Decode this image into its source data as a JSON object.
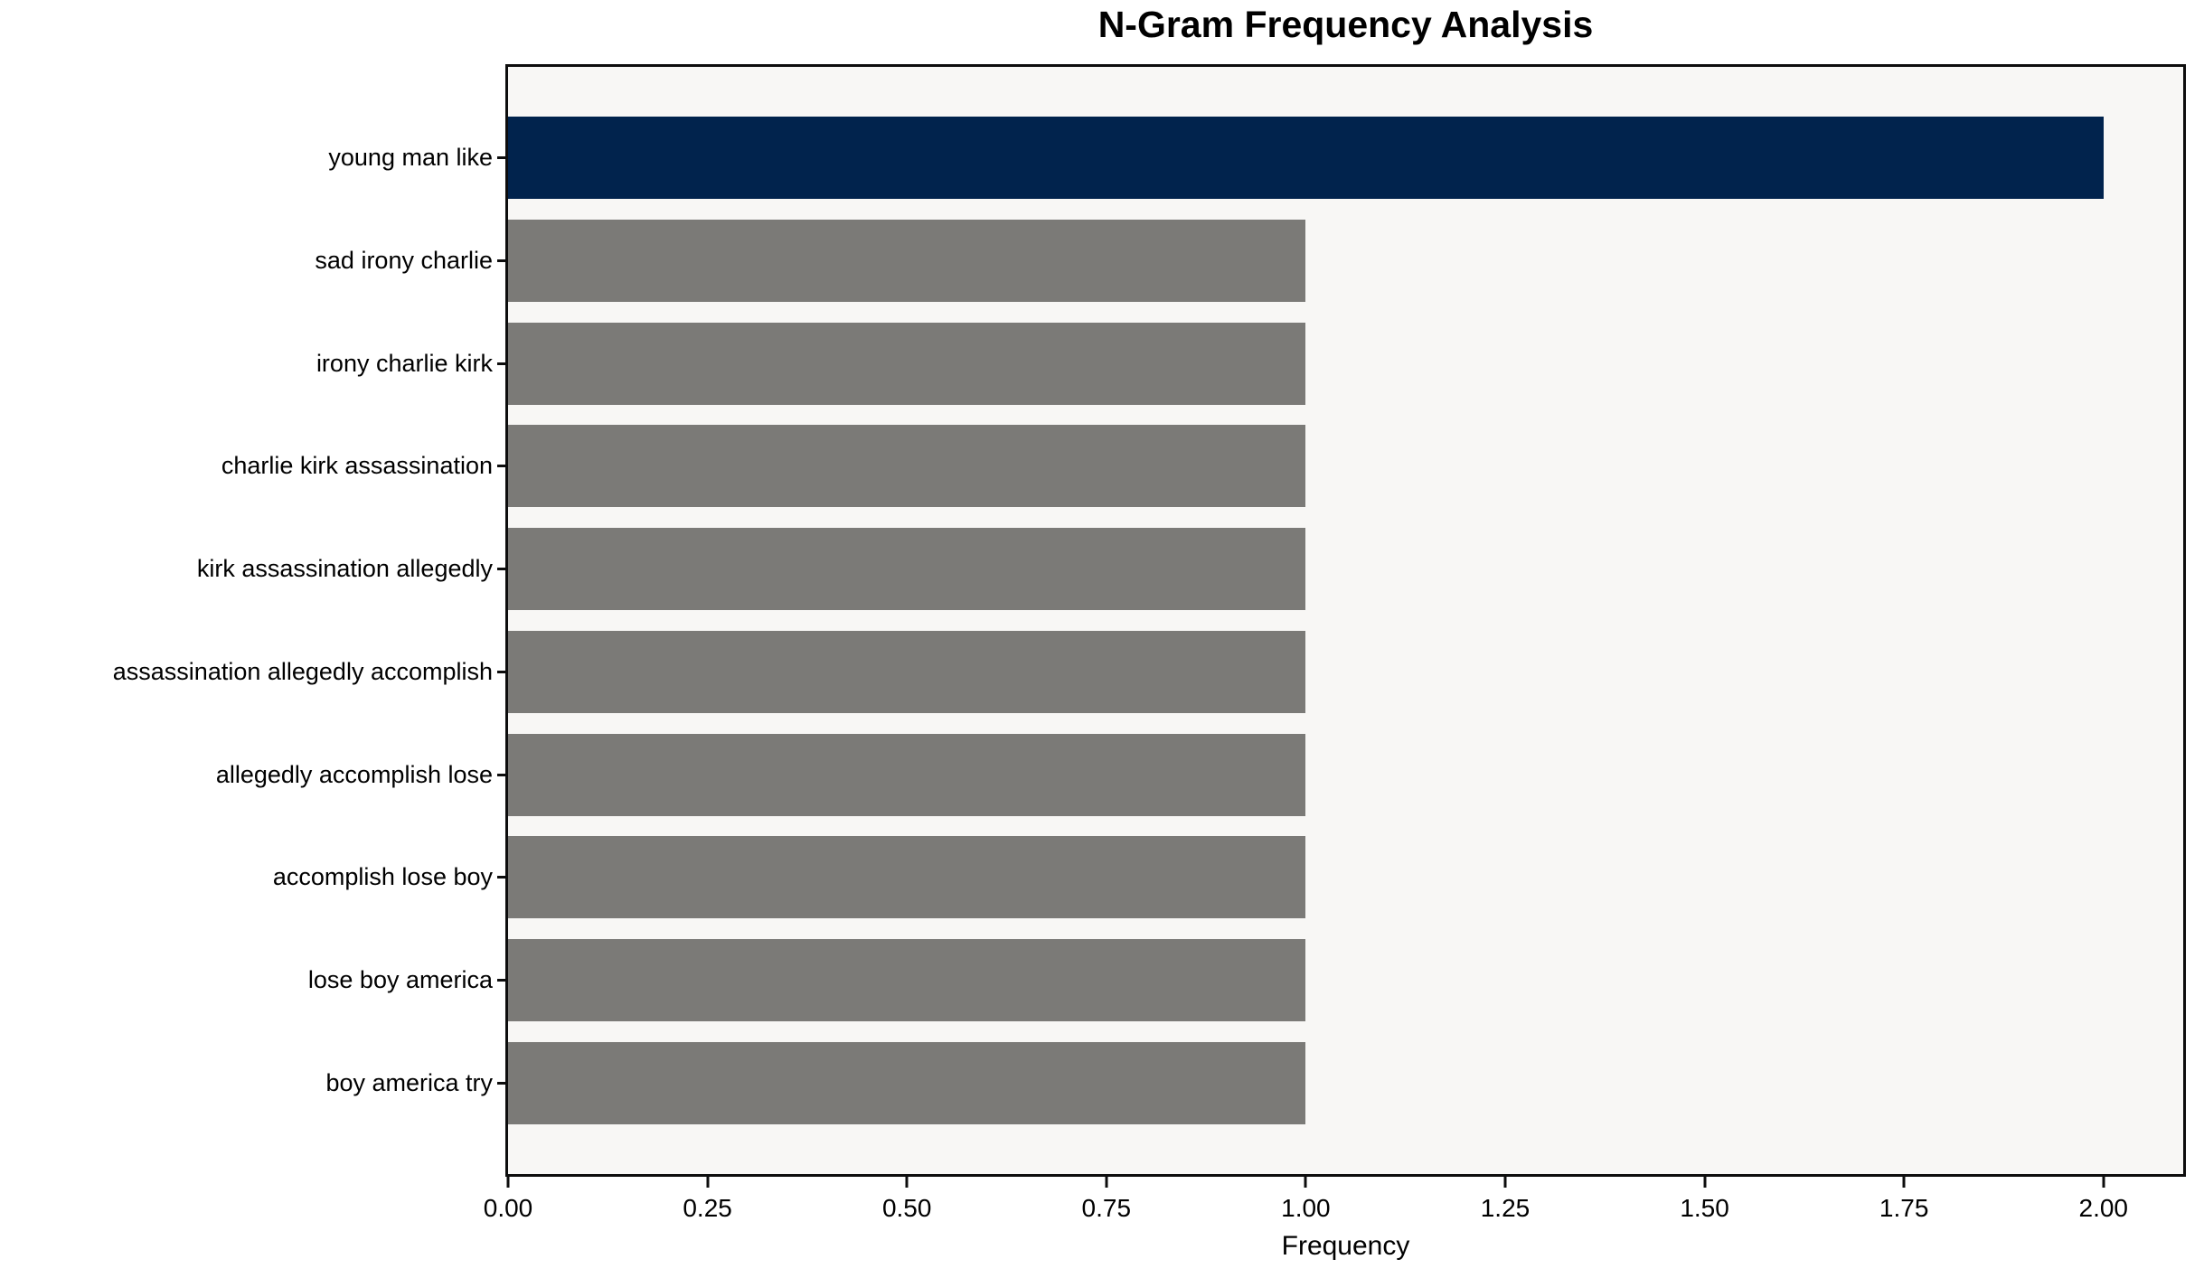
{
  "chart_data": {
    "type": "bar",
    "orientation": "horizontal",
    "title": "N-Gram Frequency Analysis",
    "xlabel": "Frequency",
    "ylabel": "",
    "categories": [
      "young man like",
      "sad irony charlie",
      "irony charlie kirk",
      "charlie kirk assassination",
      "kirk assassination allegedly",
      "assassination allegedly accomplish",
      "allegedly accomplish lose",
      "accomplish lose boy",
      "lose boy america",
      "boy america try"
    ],
    "values": [
      2,
      1,
      1,
      1,
      1,
      1,
      1,
      1,
      1,
      1
    ],
    "bar_colors": [
      "#01234d",
      "#7b7a77",
      "#7b7a77",
      "#7b7a77",
      "#7b7a77",
      "#7b7a77",
      "#7b7a77",
      "#7b7a77",
      "#7b7a77",
      "#7b7a77"
    ],
    "xlim": [
      0,
      2.1
    ],
    "xticks": [
      {
        "value": 0.0,
        "label": "0.00"
      },
      {
        "value": 0.25,
        "label": "0.25"
      },
      {
        "value": 0.5,
        "label": "0.50"
      },
      {
        "value": 0.75,
        "label": "0.75"
      },
      {
        "value": 1.0,
        "label": "1.00"
      },
      {
        "value": 1.25,
        "label": "1.25"
      },
      {
        "value": 1.5,
        "label": "1.50"
      },
      {
        "value": 1.75,
        "label": "1.75"
      },
      {
        "value": 2.0,
        "label": "2.00"
      }
    ],
    "grid": false,
    "legend": null,
    "colors": {
      "highlight_bar": "#01234d",
      "default_bar": "#7b7a77",
      "plot_background": "#f8f7f5",
      "figure_background": "#ffffff",
      "axis": "#0d0d0d",
      "text": "#000000"
    }
  }
}
